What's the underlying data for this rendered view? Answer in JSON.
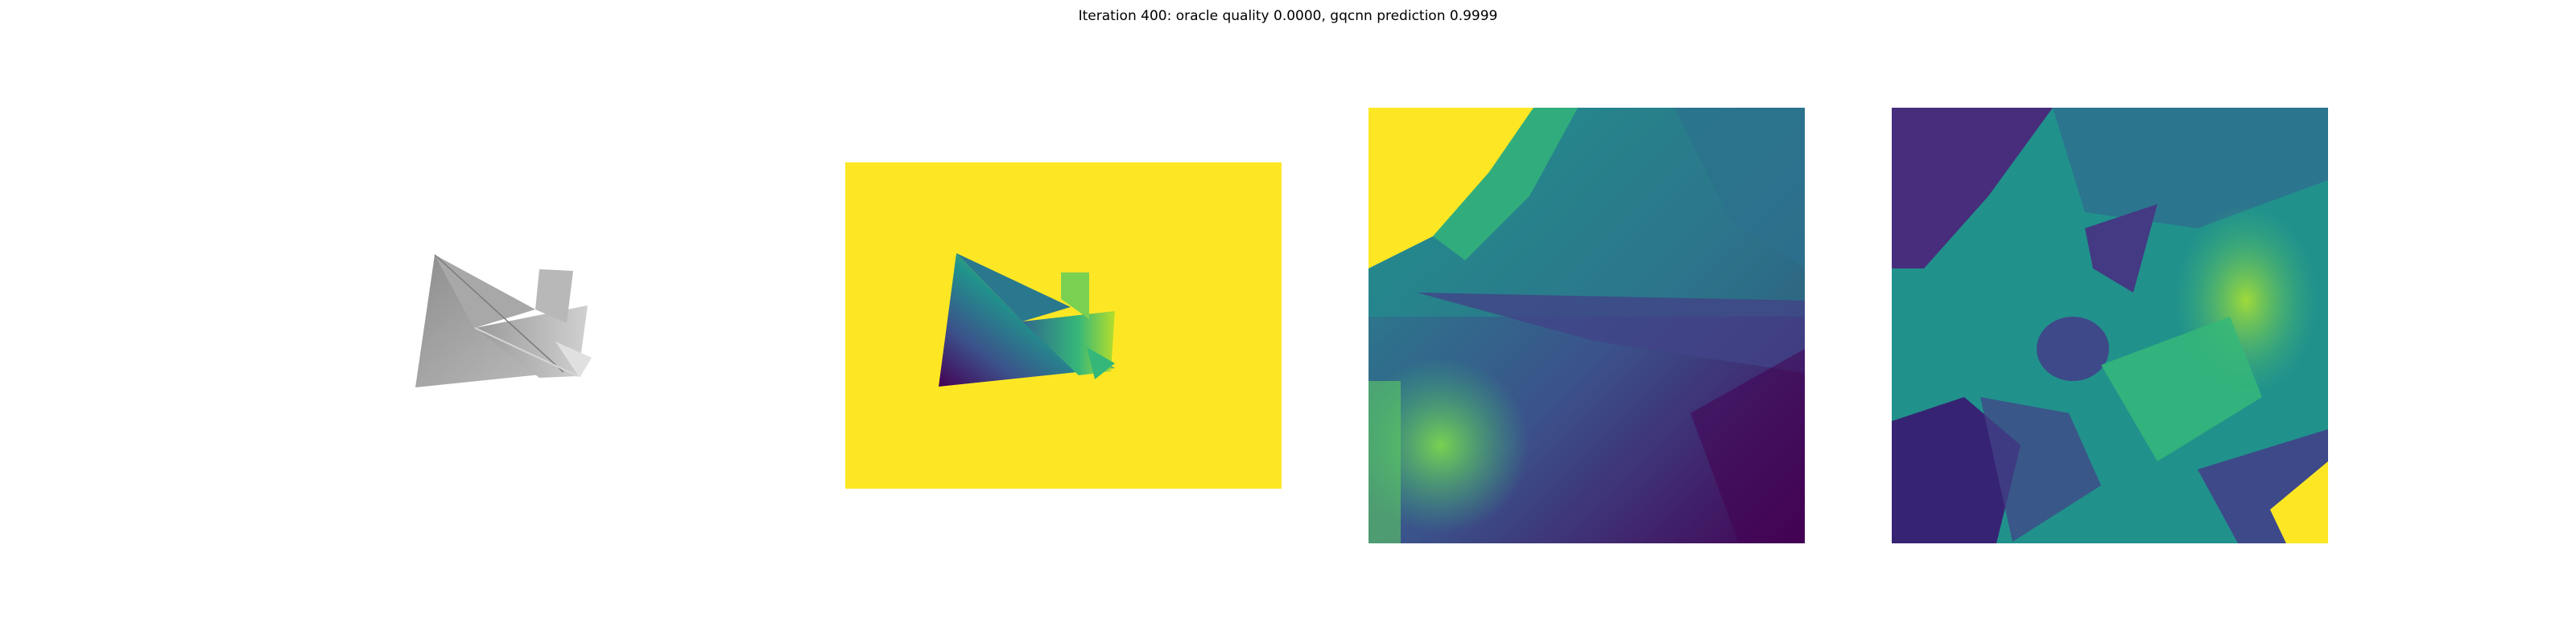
{
  "figure": {
    "title": "Iteration 400: oracle quality 0.0000, gqcnn prediction 0.9999"
  },
  "panels": [
    {
      "name": "rendered-object",
      "colormap": "gray"
    },
    {
      "name": "depth-image",
      "colormap": "viridis",
      "background_color": "#fde725"
    },
    {
      "name": "depth-crop-1",
      "colormap": "viridis"
    },
    {
      "name": "depth-crop-2",
      "colormap": "viridis"
    }
  ],
  "colors": {
    "viridis_low": "#440154",
    "viridis_mid": "#21918c",
    "viridis_high": "#fde725",
    "object_gray": "#a0a0a0"
  }
}
